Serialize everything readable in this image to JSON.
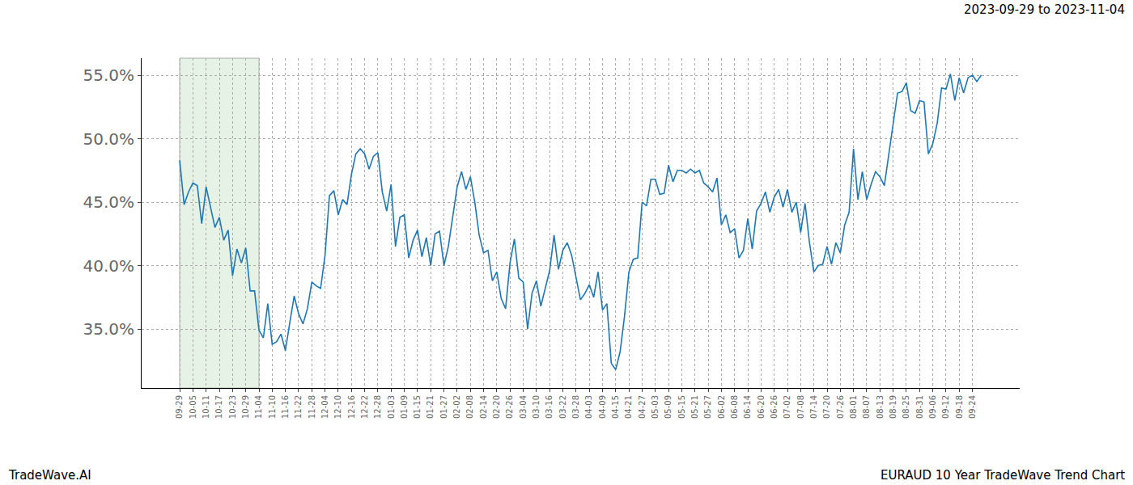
{
  "chart_data": {
    "type": "line",
    "title": "2023-09-29 to 2023-11-04",
    "annotations": [
      "TradeWave.AI",
      "EURAUD 10 Year TradeWave Trend Chart"
    ],
    "categories": [
      "09-29",
      null,
      null,
      "10-05",
      null,
      null,
      "10-11",
      null,
      null,
      "10-17",
      null,
      null,
      "10-23",
      null,
      null,
      "10-29",
      null,
      null,
      "11-04",
      null,
      null,
      "11-10",
      null,
      null,
      "11-16",
      null,
      null,
      "11-22",
      null,
      null,
      "11-28",
      null,
      null,
      "12-04",
      null,
      null,
      "12-10",
      null,
      null,
      "12-16",
      null,
      null,
      "12-22",
      null,
      null,
      "12-28",
      null,
      null,
      "01-03",
      null,
      null,
      "01-09",
      null,
      null,
      "01-15",
      null,
      null,
      "01-21",
      null,
      null,
      "01-27",
      null,
      null,
      "02-02",
      null,
      null,
      "02-08",
      null,
      null,
      "02-14",
      null,
      null,
      "02-20",
      null,
      null,
      "02-26",
      null,
      null,
      "03-04",
      null,
      null,
      "03-10",
      null,
      null,
      "03-16",
      null,
      null,
      "03-22",
      null,
      null,
      "03-28",
      null,
      null,
      "04-03",
      null,
      null,
      "04-09",
      null,
      null,
      "04-15",
      null,
      null,
      "04-21",
      null,
      null,
      "04-27",
      null,
      null,
      "05-03",
      null,
      null,
      "05-09",
      null,
      null,
      "05-15",
      null,
      null,
      "05-21",
      null,
      null,
      "05-27",
      null,
      null,
      "06-02",
      null,
      null,
      "06-08",
      null,
      null,
      "06-14",
      null,
      null,
      "06-20",
      null,
      null,
      "06-26",
      null,
      null,
      "07-02",
      null,
      null,
      "07-08",
      null,
      null,
      "07-14",
      null,
      null,
      "07-20",
      null,
      null,
      "07-26",
      null,
      null,
      "08-01",
      null,
      null,
      "08-07",
      null,
      null,
      "08-13",
      null,
      null,
      "08-19",
      null,
      null,
      "08-25",
      null,
      null,
      "08-31",
      null,
      null,
      "09-06",
      null,
      null,
      "09-12",
      null,
      null,
      "09-18",
      null,
      null,
      "09-24",
      null,
      null
    ],
    "values": [
      48.3,
      44.8,
      45.8,
      46.5,
      46.3,
      43.3,
      46.2,
      44.5,
      43.0,
      43.8,
      42.0,
      42.8,
      39.2,
      41.3,
      40.2,
      41.4,
      38.0,
      38.0,
      34.9,
      34.3,
      37.0,
      33.8,
      34.0,
      34.6,
      33.3,
      35.5,
      37.6,
      36.2,
      35.4,
      36.6,
      38.7,
      38.4,
      38.2,
      40.8,
      45.5,
      45.9,
      44.0,
      45.2,
      44.8,
      47.2,
      48.8,
      49.2,
      48.8,
      47.6,
      48.6,
      48.9,
      45.8,
      44.3,
      46.4,
      41.5,
      43.8,
      44.0,
      40.6,
      42.0,
      42.8,
      40.7,
      42.2,
      40.0,
      42.5,
      42.7,
      40.0,
      41.5,
      43.8,
      46.2,
      47.4,
      46.0,
      47.0,
      45.0,
      42.4,
      41.0,
      41.2,
      38.8,
      39.5,
      37.4,
      36.6,
      40.2,
      42.1,
      39.0,
      38.7,
      35.0,
      37.8,
      38.8,
      36.8,
      38.2,
      39.6,
      42.4,
      39.7,
      41.2,
      41.8,
      40.8,
      39.0,
      37.3,
      37.8,
      38.5,
      37.5,
      39.5,
      36.5,
      37.0,
      32.3,
      31.8,
      33.2,
      36.0,
      39.5,
      40.5,
      40.6,
      45.0,
      44.7,
      46.8,
      46.8,
      45.6,
      45.7,
      47.9,
      46.6,
      47.5,
      47.5,
      47.3,
      47.6,
      47.3,
      47.5,
      46.5,
      46.2,
      45.8,
      46.9,
      43.2,
      44.0,
      42.6,
      42.9,
      40.6,
      41.2,
      43.7,
      41.3,
      44.3,
      44.9,
      45.8,
      44.2,
      45.4,
      46.0,
      44.6,
      46.0,
      44.2,
      45.0,
      42.6,
      44.9,
      41.8,
      39.5,
      40.0,
      40.1,
      41.5,
      40.1,
      41.8,
      41.0,
      43.2,
      44.2,
      49.2,
      45.2,
      47.4,
      45.2,
      46.4,
      47.4,
      47.0,
      46.3,
      48.8,
      51.0,
      53.6,
      53.7,
      54.4,
      52.2,
      52.0,
      53.0,
      52.9,
      48.8,
      49.6,
      51.2,
      54.0,
      53.9,
      55.1,
      53.0,
      54.8,
      53.6,
      54.8,
      55.0,
      54.5,
      55.0
    ],
    "color": "#1f77b4",
    "shaded_range": {
      "from": "09-29",
      "to": "11-04",
      "color": "#e6f2e6"
    },
    "ylim": [
      30.35,
      56.34
    ],
    "yticks": [
      {
        "value": 35,
        "label": "35.0%"
      },
      {
        "value": 40,
        "label": "40.0%"
      },
      {
        "value": 45,
        "label": "45.0%"
      },
      {
        "value": 50,
        "label": "50.0%"
      },
      {
        "value": 55,
        "label": "55.0%"
      }
    ],
    "grid": true
  }
}
